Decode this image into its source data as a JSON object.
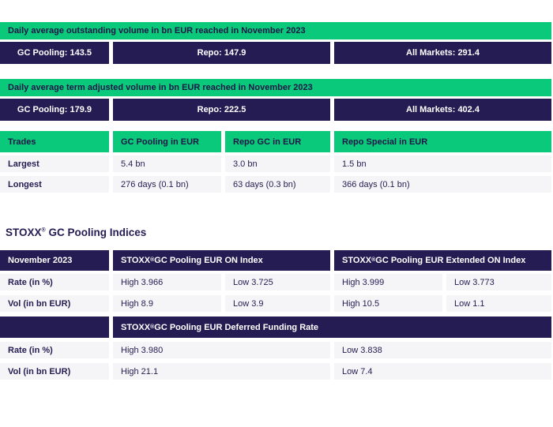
{
  "colors": {
    "green": "#0BC97B",
    "navy": "#241C52",
    "row_bg": "#F5F5F7"
  },
  "banner_outstanding": {
    "title": "Daily average outstanding volume in bn EUR reached in November 2023",
    "gc_pooling": "GC Pooling: 143.5",
    "repo": "Repo: 147.9",
    "all_markets": "All Markets: 291.4"
  },
  "banner_term_adjusted": {
    "title": "Daily average term adjusted volume in bn EUR reached in November 2023",
    "gc_pooling": "GC Pooling: 179.9",
    "repo": "Repo: 222.5",
    "all_markets": "All Markets: 402.4"
  },
  "trades": {
    "col_trades": "Trades",
    "col_gc_pooling": "GC Pooling in EUR",
    "col_repo_gc": "Repo GC in EUR",
    "col_repo_special": "Repo Special in EUR",
    "rows": [
      {
        "label": "Largest",
        "gc_pooling": "5.4 bn",
        "repo_gc": "3.0 bn",
        "repo_special": "1.5 bn"
      },
      {
        "label": "Longest",
        "gc_pooling": "276 days (0.1 bn)",
        "repo_gc": "63 days (0.3 bn)",
        "repo_special": "366 days (0.1 bn)"
      }
    ]
  },
  "indices": {
    "section_title": "STOXX® GC Pooling Indices",
    "period": "November 2023",
    "on_index_title": "STOXX® GC Pooling EUR ON Index",
    "extended_on_index_title": "STOXX® GC Pooling EUR Extended ON Index",
    "deferred_title": "STOXX® GC Pooling EUR Deferred Funding Rate",
    "rate_label": "Rate (in %)",
    "vol_label": "Vol (in bn EUR)",
    "on_index": {
      "rate_high": "High 3.966",
      "rate_low": "Low 3.725",
      "vol_high": "High 8.9",
      "vol_low": "Low 3.9"
    },
    "extended_on_index": {
      "rate_high": "High 3.999",
      "rate_low": "Low 3.773",
      "vol_high": "High 10.5",
      "vol_low": "Low 1.1"
    },
    "deferred": {
      "rate_high": "High 3.980",
      "rate_low": "Low 3.838",
      "vol_high": "High 21.1",
      "vol_low": "Low 7.4"
    }
  }
}
